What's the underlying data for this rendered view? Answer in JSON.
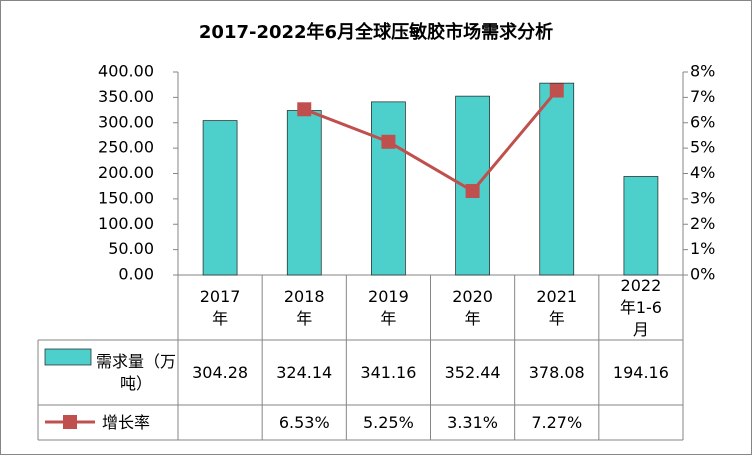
{
  "chart_data": {
    "type": "bar",
    "title": "2017-2022年6月全球压敏胶市场需求分析",
    "categories": [
      "2017年",
      "2018年",
      "2019年",
      "2020年",
      "2021年",
      "2022年1-6月"
    ],
    "series": [
      {
        "name": "需求量（万吨）",
        "type": "bar",
        "color": "#4DD0CC",
        "values": [
          304.28,
          324.14,
          341.16,
          352.44,
          378.08,
          194.16
        ]
      },
      {
        "name": "增长率",
        "type": "line",
        "axis": "y2",
        "color": "#C0504D",
        "values": [
          null,
          6.53,
          5.25,
          3.31,
          7.27,
          null
        ],
        "value_labels": [
          null,
          "6.53%",
          "5.25%",
          "3.31%",
          "7.27%",
          null
        ]
      }
    ],
    "ylim": [
      0,
      400
    ],
    "yticks": [
      {
        "value": 0,
        "label": "0.00"
      },
      {
        "value": 50,
        "label": "50.00"
      },
      {
        "value": 100,
        "label": "100.00"
      },
      {
        "value": 150,
        "label": "150.00"
      },
      {
        "value": 200,
        "label": "200.00"
      },
      {
        "value": 250,
        "label": "250.00"
      },
      {
        "value": 300,
        "label": "300.00"
      },
      {
        "value": 350,
        "label": "350.00"
      },
      {
        "value": 400,
        "label": "400.00"
      }
    ],
    "y2lim": [
      0,
      8
    ],
    "y2ticks": [
      {
        "value": 0,
        "label": "0%"
      },
      {
        "value": 1,
        "label": "1%"
      },
      {
        "value": 2,
        "label": "2%"
      },
      {
        "value": 3,
        "label": "3%"
      },
      {
        "value": 4,
        "label": "4%"
      },
      {
        "value": 5,
        "label": "5%"
      },
      {
        "value": 6,
        "label": "6%"
      },
      {
        "value": 7,
        "label": "7%"
      },
      {
        "value": 8,
        "label": "8%"
      }
    ],
    "grid": false
  }
}
